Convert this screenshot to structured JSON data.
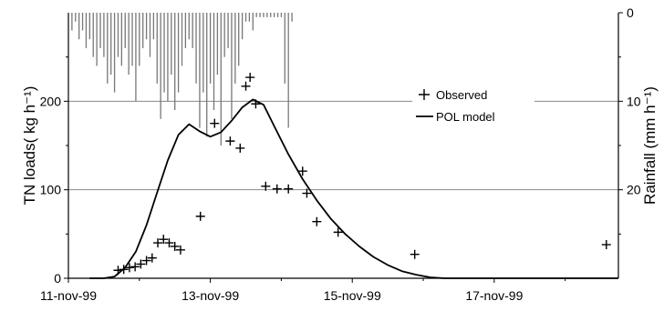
{
  "chart_data": {
    "type": "line",
    "title": "",
    "xlabel": "",
    "ylabel": "TN loads( kg h⁻¹)",
    "y2label": "Rainfall (mm h⁻¹)",
    "xlim": [
      0,
      7.75
    ],
    "ylim": [
      0,
      300
    ],
    "y2lim": [
      0,
      30
    ],
    "y2_inverted": true,
    "grid": "horizontal",
    "x_tick_values": [
      0,
      2,
      4,
      6
    ],
    "x_tick_labels": [
      "11-nov-99",
      "13-nov-99",
      "15-nov-99",
      "17-nov-99"
    ],
    "y_ticks": [
      0,
      100,
      200
    ],
    "y2_ticks": [
      0,
      10,
      20
    ],
    "legend": {
      "position": "right",
      "entries": [
        "Observed",
        "POL model"
      ]
    },
    "series": [
      {
        "name": "Observed",
        "style": "plus-markers",
        "points": [
          [
            0.7,
            9
          ],
          [
            0.78,
            10
          ],
          [
            0.86,
            12
          ],
          [
            0.94,
            13
          ],
          [
            1.02,
            16
          ],
          [
            1.1,
            20
          ],
          [
            1.18,
            23
          ],
          [
            1.26,
            40
          ],
          [
            1.34,
            44
          ],
          [
            1.42,
            40
          ],
          [
            1.5,
            36
          ],
          [
            1.58,
            32
          ],
          [
            1.86,
            70
          ],
          [
            2.06,
            175
          ],
          [
            2.28,
            155
          ],
          [
            2.42,
            147
          ],
          [
            2.5,
            217
          ],
          [
            2.56,
            227
          ],
          [
            2.64,
            197
          ],
          [
            2.78,
            104
          ],
          [
            2.94,
            101
          ],
          [
            3.1,
            101
          ],
          [
            3.3,
            121
          ],
          [
            3.36,
            96
          ],
          [
            3.5,
            64
          ],
          [
            3.8,
            52
          ],
          [
            4.88,
            27
          ],
          [
            7.58,
            38
          ]
        ]
      },
      {
        "name": "POL model",
        "style": "solid-line",
        "points": [
          [
            0.3,
            0
          ],
          [
            0.5,
            0
          ],
          [
            0.65,
            2
          ],
          [
            0.8,
            12
          ],
          [
            0.95,
            30
          ],
          [
            1.1,
            60
          ],
          [
            1.25,
            97
          ],
          [
            1.4,
            133
          ],
          [
            1.55,
            162
          ],
          [
            1.7,
            174
          ],
          [
            1.85,
            166
          ],
          [
            2.0,
            160
          ],
          [
            2.15,
            165
          ],
          [
            2.3,
            178
          ],
          [
            2.45,
            193
          ],
          [
            2.6,
            202
          ],
          [
            2.75,
            196
          ],
          [
            2.9,
            172
          ],
          [
            3.1,
            140
          ],
          [
            3.3,
            112
          ],
          [
            3.5,
            88
          ],
          [
            3.7,
            67
          ],
          [
            3.9,
            50
          ],
          [
            4.1,
            36
          ],
          [
            4.3,
            24
          ],
          [
            4.5,
            15
          ],
          [
            4.7,
            8
          ],
          [
            4.9,
            4
          ],
          [
            5.1,
            1
          ],
          [
            5.3,
            0
          ],
          [
            7.75,
            0
          ]
        ]
      },
      {
        "name": "Rainfall",
        "style": "bars-hanging-from-top",
        "axis": "y2",
        "x": [
          0.05,
          0.1,
          0.15,
          0.2,
          0.25,
          0.3,
          0.35,
          0.4,
          0.45,
          0.5,
          0.55,
          0.6,
          0.65,
          0.7,
          0.75,
          0.8,
          0.85,
          0.9,
          0.95,
          1.0,
          1.05,
          1.1,
          1.15,
          1.2,
          1.25,
          1.3,
          1.35,
          1.4,
          1.45,
          1.5,
          1.55,
          1.6,
          1.65,
          1.7,
          1.75,
          1.8,
          1.85,
          1.9,
          1.95,
          2.0,
          2.05,
          2.1,
          2.15,
          2.2,
          2.25,
          2.3,
          2.35,
          2.4,
          2.45,
          2.5,
          2.55,
          2.6,
          2.65,
          2.7,
          2.75,
          2.8,
          2.85,
          2.9,
          2.95,
          3.0,
          3.05,
          3.1,
          3.15
        ],
        "values": [
          2,
          1,
          3,
          2,
          4,
          3,
          5,
          6,
          4,
          5,
          8,
          7,
          9,
          5,
          6,
          4,
          7,
          6,
          10,
          6,
          4,
          3,
          5,
          3,
          8,
          12,
          9,
          10,
          7,
          11,
          9,
          6,
          4,
          3,
          4,
          8,
          13,
          9,
          14,
          8,
          11,
          7,
          15,
          5,
          4,
          12,
          8,
          6,
          3,
          1,
          1,
          2,
          0.5,
          0.5,
          0.5,
          0.5,
          0.5,
          0.5,
          0.5,
          0.5,
          8,
          13,
          1
        ]
      }
    ]
  }
}
